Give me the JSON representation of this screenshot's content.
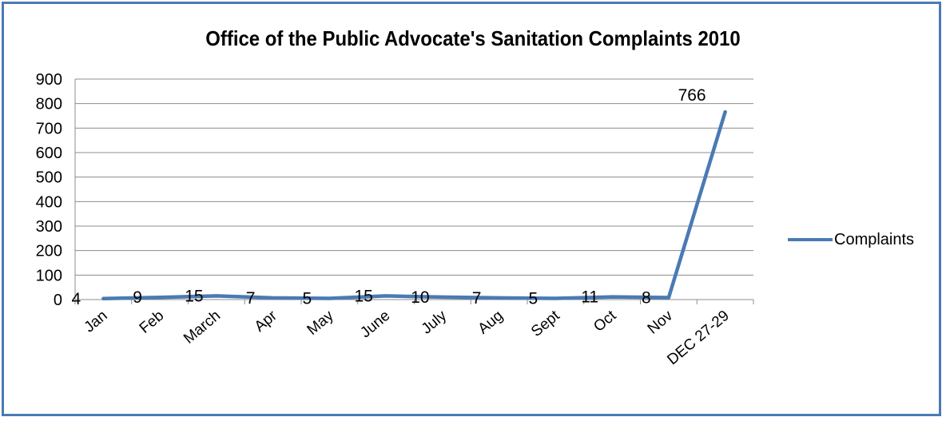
{
  "chart_data": {
    "type": "line",
    "title": "Office of the Public Advocate's Sanitation Complaints 2010",
    "categories": [
      "Jan",
      "Feb",
      "March",
      "Apr",
      "May",
      "June",
      "July",
      "Aug",
      "Sept",
      "Oct",
      "Nov",
      "DEC 27-29"
    ],
    "series": [
      {
        "name": "Complaints",
        "values": [
          4,
          9,
          15,
          7,
          5,
          15,
          10,
          7,
          5,
          11,
          8,
          766
        ],
        "color": "#4a7ab4"
      }
    ],
    "data_labels": [
      "4",
      "9",
      "15",
      "7",
      "5",
      "15",
      "10",
      "7",
      "5",
      "11",
      "8",
      "766"
    ],
    "ylim": [
      0,
      900
    ],
    "yticks": [
      "0",
      "100",
      "200",
      "300",
      "400",
      "500",
      "600",
      "700",
      "800",
      "900"
    ],
    "grid": true,
    "legend": "right"
  }
}
